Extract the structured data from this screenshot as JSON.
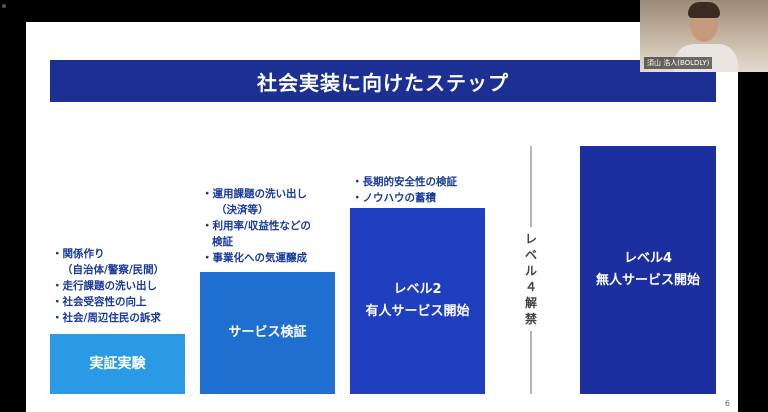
{
  "slide": {
    "title": "社会実装に向けたステップ",
    "page_number": "6",
    "steps": [
      {
        "label_lines": [
          "実証実験"
        ],
        "bullets": [
          "・関係作り",
          "（自治体/警察/民間）",
          "・走行課題の洗い出し",
          "・社会受容性の向上",
          "・社会/周辺住民の訴求"
        ]
      },
      {
        "label_lines": [
          "サービス検証"
        ],
        "bullets": [
          "・運用課題の洗い出し",
          "（決済等）",
          "・利用率/収益性などの",
          "検証",
          "・事業化への気運醸成"
        ]
      },
      {
        "label_lines": [
          "レベル2",
          "有人サービス開始"
        ],
        "bullets": [
          "・長期的安全性の検証",
          "・ノウハウの蓄積"
        ]
      },
      {
        "label_lines": [
          "レベル4",
          "無人サービス開始"
        ],
        "bullets": []
      }
    ],
    "divider_label": [
      "レ",
      "ベ",
      "ル",
      "４",
      "解",
      "禁"
    ]
  },
  "webcam": {
    "name_tag": "須山 浩人(BOLDLY)"
  },
  "colors": {
    "title_band": "#1c2f93",
    "step1": "#2a9ae6",
    "step2": "#1f6fd0",
    "step3": "#1f3fc0",
    "step4": "#1c2f9e",
    "bullet_text": "#1a3a9a"
  }
}
